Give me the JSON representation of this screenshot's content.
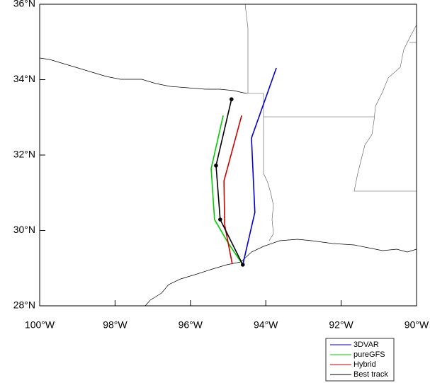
{
  "chart_data": {
    "type": "line",
    "xlim": [
      -100,
      -90
    ],
    "ylim": [
      28,
      36
    ],
    "xticks": [
      {
        "value": -100,
        "label": "100°W"
      },
      {
        "value": -98,
        "label": "98°W"
      },
      {
        "value": -96,
        "label": "96°W"
      },
      {
        "value": -94,
        "label": "94°W"
      },
      {
        "value": -92,
        "label": "92°W"
      },
      {
        "value": -90,
        "label": "90°W"
      }
    ],
    "yticks": [
      {
        "value": 28,
        "label": "28°N"
      },
      {
        "value": 30,
        "label": "30°N"
      },
      {
        "value": 32,
        "label": "32°N"
      },
      {
        "value": 34,
        "label": "34°N"
      },
      {
        "value": 36,
        "label": "36°N"
      }
    ],
    "series": [
      {
        "name": "3DVAR",
        "color": "#0000cc",
        "x": [
          -93.72,
          -94.38,
          -94.29,
          -94.61
        ],
        "values": [
          34.31,
          32.45,
          30.48,
          29.09
        ]
      },
      {
        "name": "pureGFS",
        "color": "#00cc00",
        "x": [
          -95.13,
          -95.45,
          -95.36,
          -95.0,
          -94.61
        ],
        "values": [
          33.05,
          31.64,
          30.29,
          29.67,
          29.09
        ]
      },
      {
        "name": "Hybrid",
        "color": "#cc0000",
        "x": [
          -94.64,
          -95.11,
          -95.09,
          -94.89
        ],
        "values": [
          33.05,
          31.31,
          30.14,
          29.11
        ]
      },
      {
        "name": "Best track",
        "color": "#000000",
        "x": [
          -94.91,
          -95.32,
          -95.21,
          -94.61
        ],
        "values": [
          33.48,
          31.72,
          30.29,
          29.09
        ],
        "markers": true
      }
    ]
  }
}
